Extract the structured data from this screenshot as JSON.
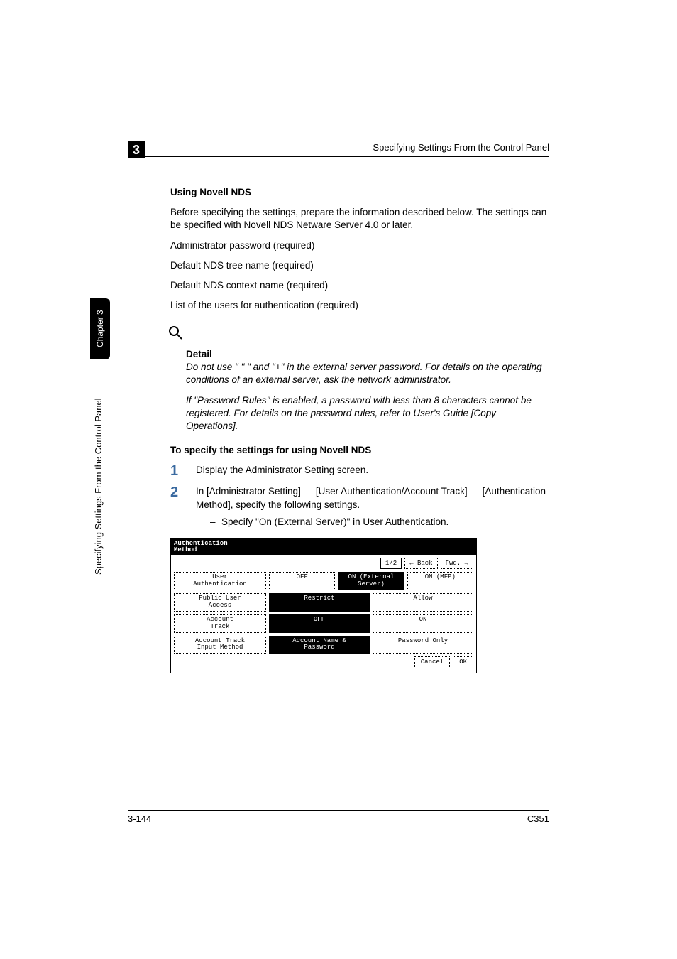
{
  "header": {
    "chapter_number": "3",
    "running_title": "Specifying Settings From the Control Panel"
  },
  "side": {
    "tab_label": "Chapter 3",
    "vertical_label": "Specifying Settings From the Control Panel"
  },
  "footer": {
    "page_number": "3-144",
    "model": "C351"
  },
  "body": {
    "section_heading": "Using Novell NDS",
    "intro": "Before specifying the settings, prepare the information described below. The settings can be specified with Novell NDS Netware Server 4.0 or later.",
    "req1": "Administrator password (required)",
    "req2": "Default NDS tree name (required)",
    "req3": "Default NDS context name (required)",
    "req4": "List of the users for authentication (required)",
    "detail_heading": "Detail",
    "detail_para1": "Do not use \" \" \" and \"+\" in the external server password. For details on the operating conditions of an external server, ask the network administrator.",
    "detail_para2": "If \"Password Rules\" is enabled, a password with less than 8 characters cannot be registered. For details on the password rules, refer to User's Guide [Copy Operations].",
    "proc_heading": "To specify the settings for using Novell NDS",
    "step1_num": "1",
    "step1_text": "Display the Administrator Setting screen.",
    "step2_num": "2",
    "step2_text": "In [Administrator Setting] — [User Authentication/Account Track] — [Authentication Method], specify the following settings.",
    "step2_bullet": "Specify \"On (External Server)\" in User Authentication."
  },
  "screenshot": {
    "title_line1": "Authentication",
    "title_line2": "Method",
    "page_indicator": "1/2",
    "back_btn": "← Back",
    "fwd_btn": "Fwd. →",
    "row1_label": "User\nAuthentication",
    "row1_opt1": "OFF",
    "row1_opt2": "ON (External\nServer)",
    "row1_opt3": "ON (MFP)",
    "row2_label": "Public User\nAccess",
    "row2_opt1": "Restrict",
    "row2_opt2": "Allow",
    "row3_label": "Account\nTrack",
    "row3_opt1": "OFF",
    "row3_opt2": "ON",
    "row4_label": "Account Track\nInput Method",
    "row4_opt1": "Account Name &\nPassword",
    "row4_opt2": "Password Only",
    "cancel_btn": "Cancel",
    "ok_btn": "OK"
  }
}
